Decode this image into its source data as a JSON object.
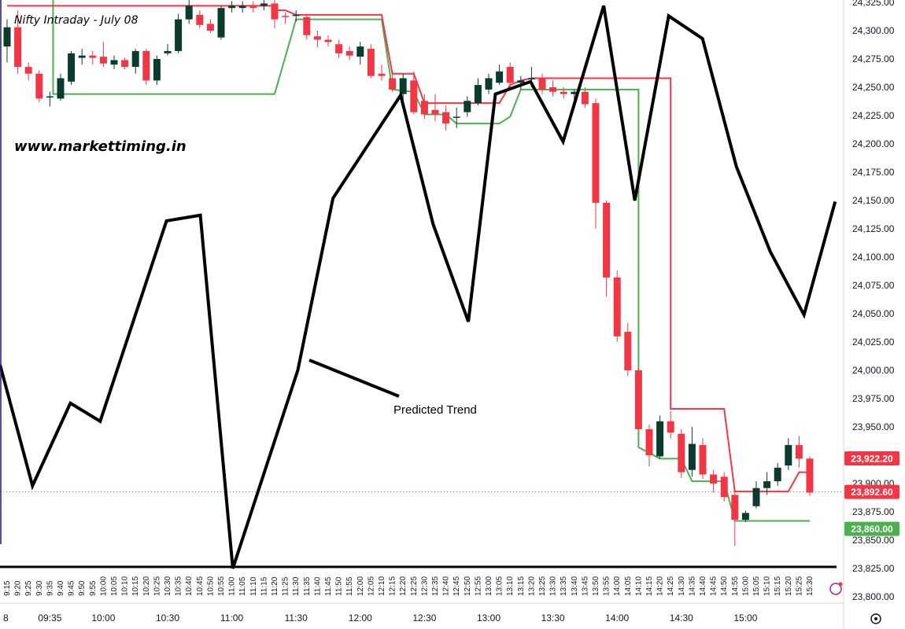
{
  "chart_data": {
    "type": "candlestick",
    "title": "Nifty Intraday - July 08",
    "watermark_text": "www.markettiming.in",
    "annotation": "Predicted Trend",
    "date_marker": "8",
    "y_ticks": [
      "24,325.00",
      "24,300.00",
      "24,275.00",
      "24,250.00",
      "24,225.00",
      "24,200.00",
      "24,175.00",
      "24,150.00",
      "24,125.00",
      "24,100.00",
      "24,075.00",
      "24,050.00",
      "24,025.00",
      "24,000.00",
      "23,975.00",
      "23,950.00",
      "23,925.00",
      "23,900.00",
      "23,875.00",
      "23,850.00",
      "23,825.00",
      "23,800.00"
    ],
    "y_tick_values": [
      24325,
      24300,
      24275,
      24250,
      24225,
      24200,
      24175,
      24150,
      24125,
      24100,
      24075,
      24050,
      24025,
      24000,
      23975,
      23950,
      23925,
      23900,
      23875,
      23850,
      23825,
      23800
    ],
    "ylim": [
      23796,
      24328
    ],
    "x_slot_labels": [
      "9:15",
      "9:20",
      "9:25",
      "9:30",
      "9:35",
      "9:40",
      "9:45",
      "9:50",
      "9:55",
      "10:00",
      "10:05",
      "10:10",
      "10:15",
      "10:20",
      "10:25",
      "10:30",
      "10:35",
      "10:40",
      "10:45",
      "10:50",
      "10:55",
      "11:00",
      "11:05",
      "11:10",
      "11:15",
      "11:20",
      "11:25",
      "11:30",
      "11:35",
      "11:40",
      "11:45",
      "11:50",
      "11:55",
      "12:00",
      "12:05",
      "12:10",
      "12:15",
      "12:20",
      "12:25",
      "12:30",
      "12:35",
      "12:40",
      "12:45",
      "12:50",
      "12:55",
      "13:00",
      "13:05",
      "13:10",
      "13:15",
      "13:20",
      "13:25",
      "13:30",
      "13:35",
      "13:40",
      "13:45",
      "13:50",
      "13:55",
      "14:00",
      "14:05",
      "14:10",
      "14:15",
      "14:20",
      "14:25",
      "14:30",
      "14:35",
      "14:40",
      "14:45",
      "14:50",
      "14:55",
      "15:00",
      "15:05",
      "15:10",
      "15:15",
      "15:20",
      "15:25",
      "15:30"
    ],
    "x_major_labels": [
      {
        "label": "09:35",
        "slot": 4
      },
      {
        "label": "10:00",
        "slot": 9
      },
      {
        "label": "10:30",
        "slot": 15
      },
      {
        "label": "11:00",
        "slot": 21
      },
      {
        "label": "11:30",
        "slot": 27
      },
      {
        "label": "12:00",
        "slot": 33
      },
      {
        "label": "12:30",
        "slot": 39
      },
      {
        "label": "13:00",
        "slot": 45
      },
      {
        "label": "13:30",
        "slot": 51
      },
      {
        "label": "14:00",
        "slot": 57
      },
      {
        "label": "14:30",
        "slot": 63
      },
      {
        "label": "15:00",
        "slot": 69
      }
    ],
    "candles": [
      {
        "t": "9:15",
        "o": 24286,
        "h": 24310,
        "l": 24272,
        "c": 24303
      },
      {
        "t": "9:20",
        "o": 24303,
        "h": 24318,
        "l": 24262,
        "c": 24268
      },
      {
        "t": "9:25",
        "o": 24268,
        "h": 24272,
        "l": 24256,
        "c": 24262
      },
      {
        "t": "9:30",
        "o": 24262,
        "h": 24265,
        "l": 24237,
        "c": 24240
      },
      {
        "t": "9:35",
        "o": 24242,
        "h": 24246,
        "l": 24233,
        "c": 24242
      },
      {
        "t": "9:40",
        "o": 24240,
        "h": 24262,
        "l": 24238,
        "c": 24258
      },
      {
        "t": "9:45",
        "o": 24255,
        "h": 24282,
        "l": 24252,
        "c": 24280
      },
      {
        "t": "9:50",
        "o": 24276,
        "h": 24284,
        "l": 24270,
        "c": 24278
      },
      {
        "t": "9:55",
        "o": 24278,
        "h": 24282,
        "l": 24270,
        "c": 24276
      },
      {
        "t": "10:00",
        "o": 24277,
        "h": 24290,
        "l": 24268,
        "c": 24271
      },
      {
        "t": "10:05",
        "o": 24270,
        "h": 24278,
        "l": 24266,
        "c": 24274
      },
      {
        "t": "10:10",
        "o": 24274,
        "h": 24276,
        "l": 24266,
        "c": 24268
      },
      {
        "t": "10:15",
        "o": 24268,
        "h": 24284,
        "l": 24262,
        "c": 24282
      },
      {
        "t": "10:20",
        "o": 24282,
        "h": 24284,
        "l": 24252,
        "c": 24256
      },
      {
        "t": "10:25",
        "o": 24256,
        "h": 24278,
        "l": 24252,
        "c": 24275
      },
      {
        "t": "10:30",
        "o": 24280,
        "h": 24288,
        "l": 24278,
        "c": 24282
      },
      {
        "t": "10:35",
        "o": 24282,
        "h": 24315,
        "l": 24280,
        "c": 24310
      },
      {
        "t": "10:40",
        "o": 24310,
        "h": 24330,
        "l": 24306,
        "c": 24322
      },
      {
        "t": "10:45",
        "o": 24314,
        "h": 24318,
        "l": 24302,
        "c": 24305
      },
      {
        "t": "10:50",
        "o": 24306,
        "h": 24310,
        "l": 24298,
        "c": 24300
      },
      {
        "t": "10:55",
        "o": 24294,
        "h": 24322,
        "l": 24292,
        "c": 24320
      },
      {
        "t": "11:00",
        "o": 24320,
        "h": 24326,
        "l": 24316,
        "c": 24322
      },
      {
        "t": "11:05",
        "o": 24320,
        "h": 24326,
        "l": 24316,
        "c": 24322
      },
      {
        "t": "11:10",
        "o": 24322,
        "h": 24326,
        "l": 24316,
        "c": 24320
      },
      {
        "t": "11:15",
        "o": 24322,
        "h": 24330,
        "l": 24318,
        "c": 24324
      },
      {
        "t": "11:20",
        "o": 24324,
        "h": 24328,
        "l": 24302,
        "c": 24310
      },
      {
        "t": "11:25",
        "o": 24313,
        "h": 24316,
        "l": 24306,
        "c": 24312
      },
      {
        "t": "11:30",
        "o": 24313,
        "h": 24318,
        "l": 24308,
        "c": 24314
      },
      {
        "t": "11:35",
        "o": 24312,
        "h": 24314,
        "l": 24292,
        "c": 24296
      },
      {
        "t": "11:40",
        "o": 24295,
        "h": 24300,
        "l": 24285,
        "c": 24292
      },
      {
        "t": "11:45",
        "o": 24292,
        "h": 24296,
        "l": 24286,
        "c": 24290
      },
      {
        "t": "11:50",
        "o": 24288,
        "h": 24292,
        "l": 24276,
        "c": 24280
      },
      {
        "t": "11:55",
        "o": 24282,
        "h": 24286,
        "l": 24274,
        "c": 24278
      },
      {
        "t": "12:00",
        "o": 24277,
        "h": 24290,
        "l": 24270,
        "c": 24286
      },
      {
        "t": "12:05",
        "o": 24284,
        "h": 24288,
        "l": 24258,
        "c": 24260
      },
      {
        "t": "12:10",
        "o": 24262,
        "h": 24270,
        "l": 24256,
        "c": 24260
      },
      {
        "t": "12:15",
        "o": 24258,
        "h": 24262,
        "l": 24246,
        "c": 24248
      },
      {
        "t": "12:20",
        "o": 24244,
        "h": 24262,
        "l": 24236,
        "c": 24258
      },
      {
        "t": "12:25",
        "o": 24256,
        "h": 24264,
        "l": 24226,
        "c": 24228
      },
      {
        "t": "12:30",
        "o": 24238,
        "h": 24244,
        "l": 24222,
        "c": 24226
      },
      {
        "t": "12:35",
        "o": 24230,
        "h": 24244,
        "l": 24220,
        "c": 24226
      },
      {
        "t": "12:40",
        "o": 24228,
        "h": 24234,
        "l": 24212,
        "c": 24218
      },
      {
        "t": "12:45",
        "o": 24224,
        "h": 24232,
        "l": 24214,
        "c": 24224
      },
      {
        "t": "12:50",
        "o": 24228,
        "h": 24242,
        "l": 24224,
        "c": 24238
      },
      {
        "t": "12:55",
        "o": 24236,
        "h": 24258,
        "l": 24234,
        "c": 24252
      },
      {
        "t": "13:00",
        "o": 24248,
        "h": 24262,
        "l": 24244,
        "c": 24258
      },
      {
        "t": "13:05",
        "o": 24254,
        "h": 24270,
        "l": 24252,
        "c": 24264
      },
      {
        "t": "13:10",
        "o": 24268,
        "h": 24272,
        "l": 24250,
        "c": 24254
      },
      {
        "t": "13:15",
        "o": 24254,
        "h": 24260,
        "l": 24248,
        "c": 24256
      },
      {
        "t": "13:20",
        "o": 24258,
        "h": 24268,
        "l": 24250,
        "c": 24258
      },
      {
        "t": "13:25",
        "o": 24258,
        "h": 24262,
        "l": 24244,
        "c": 24248
      },
      {
        "t": "13:30",
        "o": 24250,
        "h": 24256,
        "l": 24242,
        "c": 24246
      },
      {
        "t": "13:35",
        "o": 24246,
        "h": 24250,
        "l": 24240,
        "c": 24244
      },
      {
        "t": "13:40",
        "o": 24244,
        "h": 24248,
        "l": 24236,
        "c": 24246
      },
      {
        "t": "13:45",
        "o": 24246,
        "h": 24250,
        "l": 24232,
        "c": 24235
      },
      {
        "t": "13:50",
        "o": 24236,
        "h": 24240,
        "l": 24125,
        "c": 24148
      },
      {
        "t": "13:55",
        "o": 24148,
        "h": 24150,
        "l": 24065,
        "c": 24082
      },
      {
        "t": "14:00",
        "o": 24082,
        "h": 24088,
        "l": 24025,
        "c": 24030
      },
      {
        "t": "14:05",
        "o": 24034,
        "h": 24042,
        "l": 23995,
        "c": 24000
      },
      {
        "t": "14:10",
        "o": 24000,
        "h": 24002,
        "l": 23952,
        "c": 23948
      },
      {
        "t": "14:15",
        "o": 23948,
        "h": 23952,
        "l": 23915,
        "c": 23925
      },
      {
        "t": "14:20",
        "o": 23924,
        "h": 23960,
        "l": 23922,
        "c": 23955
      },
      {
        "t": "14:25",
        "o": 23955,
        "h": 23964,
        "l": 23940,
        "c": 23945
      },
      {
        "t": "14:30",
        "o": 23944,
        "h": 23948,
        "l": 23905,
        "c": 23910
      },
      {
        "t": "14:35",
        "o": 23912,
        "h": 23950,
        "l": 23906,
        "c": 23935
      },
      {
        "t": "14:40",
        "o": 23934,
        "h": 23940,
        "l": 23904,
        "c": 23908
      },
      {
        "t": "14:45",
        "o": 23908,
        "h": 23912,
        "l": 23892,
        "c": 23900
      },
      {
        "t": "14:50",
        "o": 23906,
        "h": 23910,
        "l": 23884,
        "c": 23888
      },
      {
        "t": "14:55",
        "o": 23890,
        "h": 23896,
        "l": 23845,
        "c": 23868
      },
      {
        "t": "15:00",
        "o": 23868,
        "h": 23876,
        "l": 23866,
        "c": 23874
      },
      {
        "t": "15:05",
        "o": 23880,
        "h": 23902,
        "l": 23878,
        "c": 23896
      },
      {
        "t": "15:10",
        "o": 23896,
        "h": 23910,
        "l": 23890,
        "c": 23902
      },
      {
        "t": "15:15",
        "o": 23902,
        "h": 23918,
        "l": 23898,
        "c": 23914
      },
      {
        "t": "15:20",
        "o": 23916,
        "h": 23940,
        "l": 23912,
        "c": 23934
      },
      {
        "t": "15:25",
        "o": 23934,
        "h": 23942,
        "l": 23914,
        "c": 23922
      },
      {
        "t": "15:30",
        "o": 23922,
        "h": 23924,
        "l": 23889,
        "c": 23892
      }
    ],
    "red_band": [
      [
        0,
        24322
      ],
      [
        25,
        24322
      ],
      [
        25,
        24318
      ],
      [
        26,
        24318
      ],
      [
        27,
        24314
      ],
      [
        35,
        24314
      ],
      [
        36,
        24262
      ],
      [
        38,
        24262
      ],
      [
        39,
        24236
      ],
      [
        46,
        24236
      ],
      [
        47,
        24252
      ],
      [
        48,
        24256
      ],
      [
        49,
        24258
      ],
      [
        60,
        24258
      ],
      [
        61,
        24258
      ],
      [
        62,
        24258
      ],
      [
        62,
        23966
      ],
      [
        67,
        23966
      ],
      [
        68,
        23893
      ],
      [
        72,
        23893
      ],
      [
        73,
        23893
      ],
      [
        74,
        23910
      ],
      [
        75,
        23910
      ]
    ],
    "green_band": [
      [
        4.3,
        24340
      ],
      [
        4.3,
        24304
      ],
      [
        4.3,
        24244
      ],
      [
        25,
        24244
      ],
      [
        27,
        24310
      ],
      [
        35,
        24310
      ],
      [
        36,
        24248
      ],
      [
        38,
        24246
      ],
      [
        39,
        24226
      ],
      [
        41,
        24226
      ],
      [
        42,
        24218
      ],
      [
        46,
        24218
      ],
      [
        47,
        24224
      ],
      [
        48,
        24248
      ],
      [
        56,
        24248
      ],
      [
        58,
        24248
      ],
      [
        59,
        24248
      ],
      [
        59,
        23932
      ],
      [
        61,
        23922
      ],
      [
        63,
        23922
      ],
      [
        64,
        23902
      ],
      [
        67,
        23902
      ],
      [
        68,
        23867
      ],
      [
        72,
        23867
      ],
      [
        75,
        23867
      ]
    ],
    "predicted_trend": [
      [
        0,
        24005
      ],
      [
        2.4,
        23898
      ],
      [
        5.2,
        23971
      ],
      [
        7.4,
        23955
      ],
      [
        12.3,
        24132
      ],
      [
        14.8,
        24137
      ],
      [
        17.2,
        23825
      ],
      [
        22,
        24000
      ],
      [
        24.6,
        24152
      ],
      [
        29.6,
        24243
      ],
      [
        32,
        24129
      ],
      [
        34.6,
        24043
      ],
      [
        36.6,
        24244
      ],
      [
        39.2,
        24255
      ],
      [
        41.6,
        24202
      ],
      [
        44.6,
        24322
      ],
      [
        46.9,
        24150
      ],
      [
        49.4,
        24313
      ],
      [
        51.9,
        24293
      ],
      [
        54.4,
        24180
      ],
      [
        56.9,
        24105
      ],
      [
        59.4,
        24049
      ],
      [
        61.7,
        24149
      ]
    ],
    "last_price_line": 23892.6,
    "price_badges": [
      {
        "label": "23,922.20",
        "value": 23922.2,
        "color": "#f23645"
      },
      {
        "label": "23,892.60",
        "value": 23892.6,
        "color": "#f23645"
      },
      {
        "label": "23,860.00",
        "value": 23860.0,
        "color": "#4caf50"
      }
    ],
    "colors": {
      "bull": "#0b3b2e",
      "bear": "#f23645",
      "red_band": "#f23645",
      "green_band": "#4caf50",
      "trend": "#000000",
      "grid": "#e0e3eb"
    }
  },
  "icons": {
    "settings": "gear-icon"
  }
}
